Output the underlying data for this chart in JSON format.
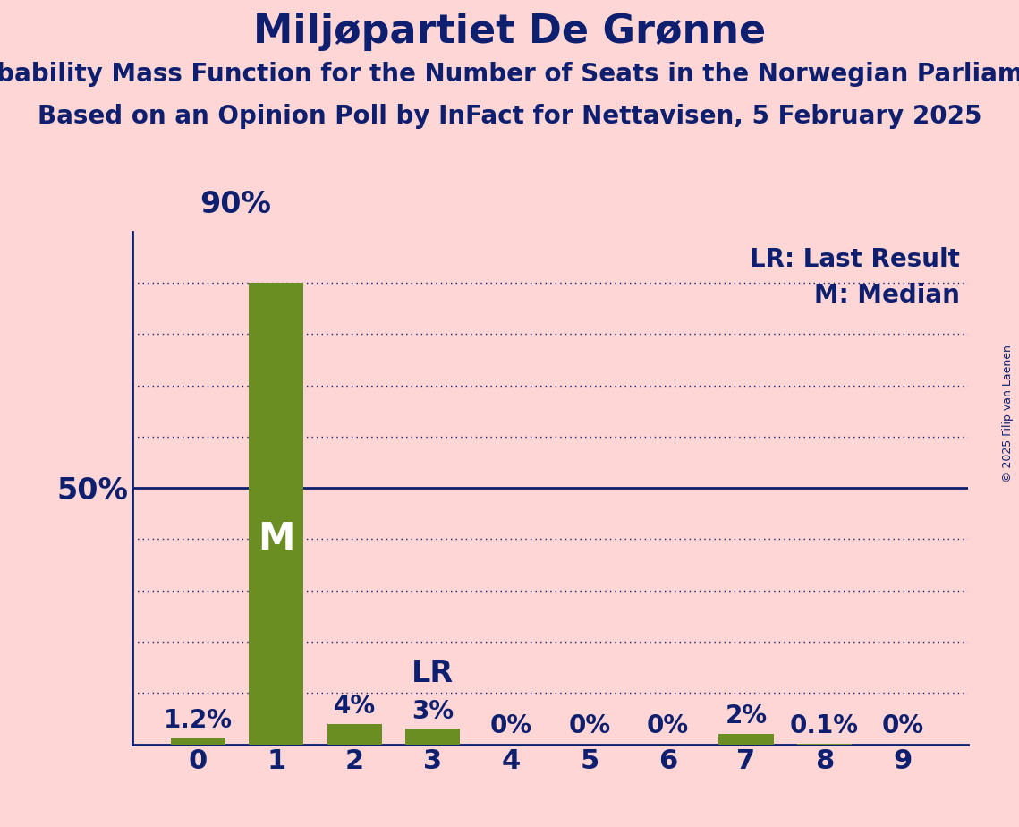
{
  "title": "Miljøpartiet De Grønne",
  "subtitle1": "Probability Mass Function for the Number of Seats in the Norwegian Parliament",
  "subtitle2": "Based on an Opinion Poll by InFact for Nettavisen, 5 February 2025",
  "copyright": "© 2025 Filip van Laenen",
  "categories": [
    0,
    1,
    2,
    3,
    4,
    5,
    6,
    7,
    8,
    9
  ],
  "values": [
    1.2,
    90.0,
    4.0,
    3.0,
    0.0,
    0.0,
    0.0,
    2.0,
    0.1,
    0.0
  ],
  "bar_color": "#6B8E23",
  "median_bar": 1,
  "last_result_bar": 3,
  "background_color": "#FFD6D6",
  "text_color": "#0D1F6E",
  "line_color": "#0D1F6E",
  "ylim": [
    0,
    100
  ],
  "fifty_pct": 50,
  "grid_levels": [
    10,
    20,
    30,
    40,
    60,
    70,
    80,
    90
  ],
  "legend_lr": "LR: Last Result",
  "legend_m": "M: Median",
  "bar_label_fontsize": 20,
  "title_fontsize": 32,
  "subtitle_fontsize": 20,
  "axis_tick_fontsize": 22,
  "ylabel_fontsize": 24,
  "legend_fontsize": 20,
  "m_fontsize": 30,
  "lr_fontsize": 24,
  "copyright_fontsize": 9
}
